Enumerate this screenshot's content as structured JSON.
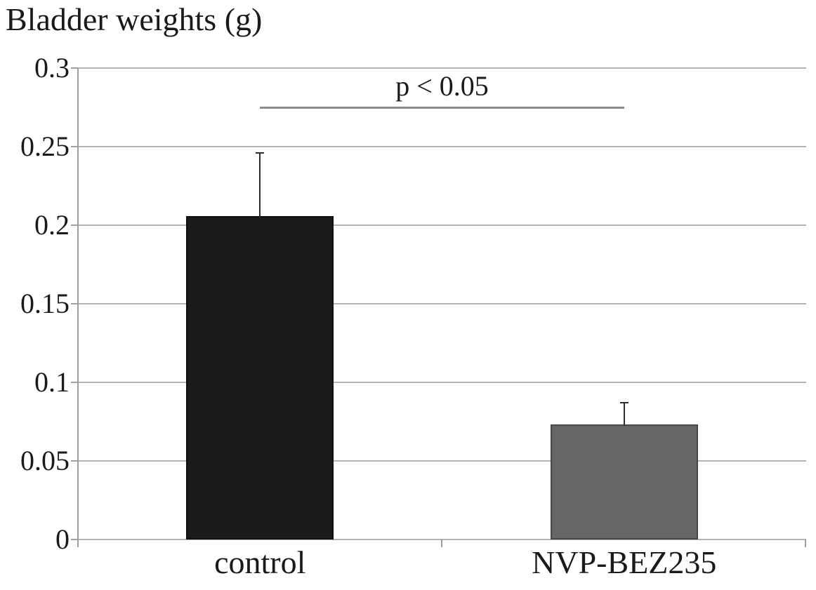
{
  "chart_data": {
    "type": "bar",
    "title": "Bladder weights (g)",
    "xlabel": "",
    "ylabel": "",
    "categories": [
      "control",
      "NVP-BEZ235"
    ],
    "values": [
      0.206,
      0.073
    ],
    "error_plus": [
      0.04,
      0.014
    ],
    "ylim": [
      0,
      0.3
    ],
    "ytick_values": [
      0,
      0.05,
      0.1,
      0.15,
      0.2,
      0.25,
      0.3
    ],
    "ytick_labels": [
      "0",
      "0.05",
      "0.1",
      "0.15",
      "0.2",
      "0.25",
      "0.3"
    ],
    "grid": true,
    "legend": "none",
    "annotation": {
      "text": "p < 0.05",
      "y": 0.2755,
      "from_category": 0,
      "to_category": 1
    },
    "bar_colors": [
      "#1b1b1d",
      "#666669"
    ],
    "bar_border_colors": [
      "#0f0f0f",
      "#474747"
    ],
    "grid_color": "#b3b3b3",
    "axis_color": "#9e9e9e",
    "error_bar_color": "#2f2f2f",
    "annotation_line_color": "#8c8c8c",
    "text_color": "#1a1a1a"
  }
}
